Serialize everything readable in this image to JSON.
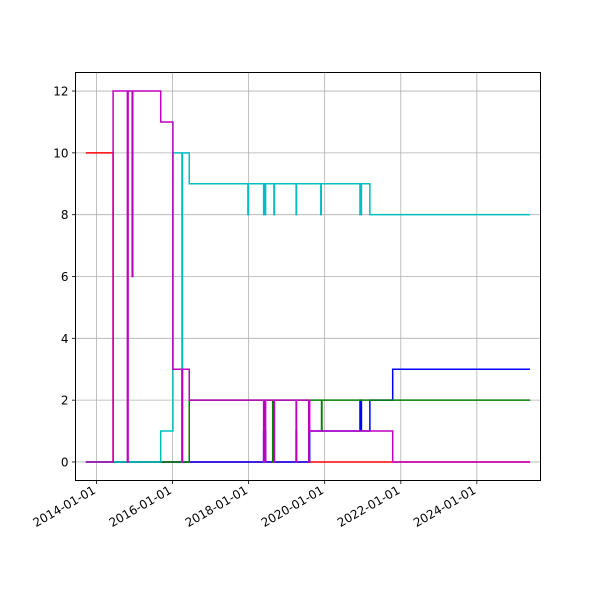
{
  "chart_data": {
    "type": "line",
    "title": "",
    "xlabel": "",
    "ylabel": "",
    "xlim": [
      "2013-06-14",
      "2025-09-03"
    ],
    "ylim": [
      -0.6,
      12.6
    ],
    "grid": true,
    "legend": "none",
    "x_ticks": [
      "2014-01-01",
      "2016-01-01",
      "2018-01-01",
      "2020-01-01",
      "2022-01-01",
      "2024-01-01"
    ],
    "y_ticks": [
      0,
      2,
      4,
      6,
      8,
      10,
      12
    ],
    "series": [
      {
        "color": "#ff0000",
        "points": [
          [
            "2013-09-21",
            10
          ],
          [
            "2014-06-10",
            10
          ],
          [
            "2014-06-10",
            0
          ],
          [
            "2025-05-26",
            0
          ]
        ]
      },
      {
        "color": "#0000ff",
        "points": [
          [
            "2013-09-21",
            0
          ],
          [
            "2018-05-25",
            0
          ],
          [
            "2018-05-25",
            1
          ],
          [
            "2018-05-28",
            1
          ],
          [
            "2018-05-28",
            0
          ],
          [
            "2018-06-02",
            0
          ],
          [
            "2018-06-02",
            1
          ],
          [
            "2018-06-05",
            1
          ],
          [
            "2018-06-05",
            0
          ],
          [
            "2018-06-10",
            0
          ],
          [
            "2018-06-10",
            1
          ],
          [
            "2018-06-13",
            1
          ],
          [
            "2018-06-13",
            0
          ],
          [
            "2019-04-02",
            0
          ],
          [
            "2019-04-02",
            1
          ],
          [
            "2019-04-06",
            1
          ],
          [
            "2019-04-06",
            0
          ],
          [
            "2019-08-10",
            0
          ],
          [
            "2019-08-10",
            1
          ],
          [
            "2020-12-05",
            1
          ],
          [
            "2020-12-05",
            2
          ],
          [
            "2020-12-09",
            2
          ],
          [
            "2020-12-09",
            1
          ],
          [
            "2020-12-15",
            1
          ],
          [
            "2020-12-15",
            2
          ],
          [
            "2020-12-19",
            2
          ],
          [
            "2020-12-19",
            1
          ],
          [
            "2021-03-10",
            1
          ],
          [
            "2021-03-10",
            2
          ],
          [
            "2021-10-15",
            2
          ],
          [
            "2021-10-15",
            3
          ],
          [
            "2025-05-26",
            3
          ]
        ]
      },
      {
        "color": "#008000",
        "points": [
          [
            "2013-09-21",
            0
          ],
          [
            "2016-06-10",
            0
          ],
          [
            "2016-06-10",
            2
          ],
          [
            "2018-08-20",
            2
          ],
          [
            "2018-08-20",
            0
          ],
          [
            "2018-08-25",
            0
          ],
          [
            "2018-08-25",
            2
          ],
          [
            "2019-12-02",
            2
          ],
          [
            "2019-12-02",
            1
          ],
          [
            "2019-12-06",
            1
          ],
          [
            "2019-12-06",
            2
          ],
          [
            "2025-05-26",
            2
          ]
        ]
      },
      {
        "color": "#00bfbf",
        "points": [
          [
            "2013-09-21",
            0
          ],
          [
            "2015-09-10",
            0
          ],
          [
            "2015-09-10",
            1
          ],
          [
            "2016-01-05",
            1
          ],
          [
            "2016-01-05",
            10
          ],
          [
            "2016-04-01",
            10
          ],
          [
            "2016-04-01",
            0
          ],
          [
            "2016-04-06",
            0
          ],
          [
            "2016-04-06",
            10
          ],
          [
            "2016-06-10",
            10
          ],
          [
            "2016-06-10",
            9
          ],
          [
            "2017-12-25",
            9
          ],
          [
            "2017-12-25",
            8
          ],
          [
            "2017-12-30",
            8
          ],
          [
            "2017-12-30",
            9
          ],
          [
            "2018-05-25",
            9
          ],
          [
            "2018-05-25",
            8
          ],
          [
            "2018-05-28",
            8
          ],
          [
            "2018-05-28",
            9
          ],
          [
            "2018-06-02",
            9
          ],
          [
            "2018-06-02",
            8
          ],
          [
            "2018-06-05",
            8
          ],
          [
            "2018-06-05",
            9
          ],
          [
            "2018-06-10",
            9
          ],
          [
            "2018-06-10",
            8
          ],
          [
            "2018-06-13",
            8
          ],
          [
            "2018-06-13",
            9
          ],
          [
            "2018-09-01",
            9
          ],
          [
            "2018-09-01",
            8
          ],
          [
            "2018-09-06",
            8
          ],
          [
            "2018-09-06",
            9
          ],
          [
            "2019-04-02",
            9
          ],
          [
            "2019-04-02",
            8
          ],
          [
            "2019-04-06",
            8
          ],
          [
            "2019-04-06",
            9
          ],
          [
            "2019-11-25",
            9
          ],
          [
            "2019-11-25",
            8
          ],
          [
            "2019-11-29",
            8
          ],
          [
            "2019-11-29",
            9
          ],
          [
            "2020-12-05",
            9
          ],
          [
            "2020-12-05",
            8
          ],
          [
            "2020-12-09",
            8
          ],
          [
            "2020-12-09",
            9
          ],
          [
            "2020-12-15",
            9
          ],
          [
            "2020-12-15",
            8
          ],
          [
            "2020-12-19",
            8
          ],
          [
            "2020-12-19",
            9
          ],
          [
            "2021-03-10",
            9
          ],
          [
            "2021-03-10",
            8
          ],
          [
            "2025-05-26",
            8
          ]
        ]
      },
      {
        "color": "#bf00bf",
        "points": [
          [
            "2013-09-21",
            0
          ],
          [
            "2014-06-10",
            0
          ],
          [
            "2014-06-10",
            12
          ],
          [
            "2014-10-25",
            12
          ],
          [
            "2014-10-25",
            0
          ],
          [
            "2014-11-01",
            0
          ],
          [
            "2014-11-01",
            12
          ],
          [
            "2014-12-10",
            12
          ],
          [
            "2014-12-10",
            6
          ],
          [
            "2014-12-16",
            6
          ],
          [
            "2014-12-16",
            12
          ],
          [
            "2015-09-10",
            12
          ],
          [
            "2015-09-10",
            11
          ],
          [
            "2016-01-05",
            11
          ],
          [
            "2016-01-05",
            3
          ],
          [
            "2016-04-01",
            3
          ],
          [
            "2016-04-01",
            0
          ],
          [
            "2016-04-06",
            0
          ],
          [
            "2016-04-06",
            3
          ],
          [
            "2016-06-10",
            3
          ],
          [
            "2016-06-10",
            2
          ],
          [
            "2018-05-25",
            2
          ],
          [
            "2018-05-25",
            0
          ],
          [
            "2018-05-28",
            0
          ],
          [
            "2018-05-28",
            2
          ],
          [
            "2018-06-02",
            2
          ],
          [
            "2018-06-02",
            0
          ],
          [
            "2018-06-05",
            0
          ],
          [
            "2018-06-05",
            2
          ],
          [
            "2018-06-10",
            2
          ],
          [
            "2018-06-10",
            0
          ],
          [
            "2018-06-13",
            0
          ],
          [
            "2018-06-13",
            2
          ],
          [
            "2018-09-01",
            2
          ],
          [
            "2018-09-01",
            0
          ],
          [
            "2018-09-06",
            0
          ],
          [
            "2018-09-06",
            2
          ],
          [
            "2019-04-02",
            2
          ],
          [
            "2019-04-02",
            0
          ],
          [
            "2019-04-06",
            0
          ],
          [
            "2019-04-06",
            2
          ],
          [
            "2019-08-01",
            2
          ],
          [
            "2019-08-01",
            0
          ],
          [
            "2019-08-05",
            0
          ],
          [
            "2019-08-05",
            2
          ],
          [
            "2019-08-10",
            2
          ],
          [
            "2019-08-10",
            1
          ],
          [
            "2021-10-15",
            1
          ],
          [
            "2021-10-15",
            0
          ],
          [
            "2025-05-26",
            0
          ]
        ]
      }
    ]
  }
}
